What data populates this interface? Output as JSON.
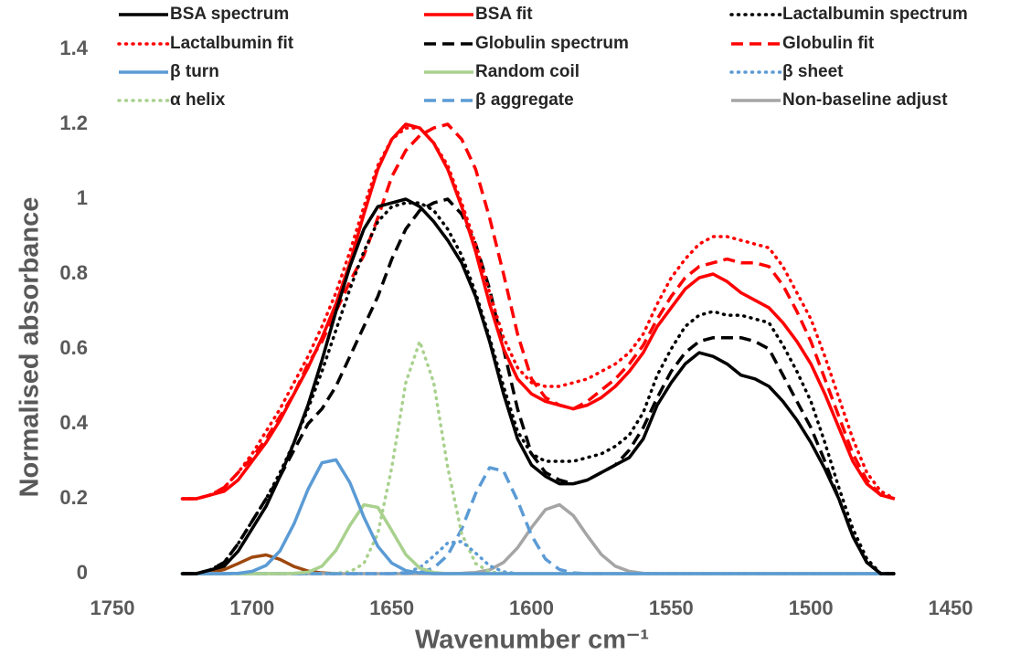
{
  "chart_data": {
    "type": "line",
    "x_label": "Wavenumber cm⁻¹",
    "y_label": "Normalised absorbance",
    "xlim": [
      1750,
      1450
    ],
    "xticks": [
      1750,
      1700,
      1650,
      1600,
      1550,
      1500,
      1450
    ],
    "ylim": [
      0,
      1.4
    ],
    "yticks": [
      0,
      0.2,
      0.4,
      0.6,
      0.8,
      1,
      1.2,
      1.4
    ],
    "grid": false,
    "x": [
      1725,
      1720,
      1715,
      1710,
      1705,
      1700,
      1695,
      1690,
      1685,
      1680,
      1675,
      1670,
      1665,
      1660,
      1655,
      1650,
      1645,
      1640,
      1635,
      1630,
      1625,
      1620,
      1615,
      1610,
      1605,
      1600,
      1595,
      1590,
      1585,
      1580,
      1575,
      1570,
      1565,
      1560,
      1555,
      1550,
      1545,
      1540,
      1535,
      1530,
      1525,
      1520,
      1515,
      1510,
      1505,
      1500,
      1495,
      1490,
      1485,
      1480,
      1475,
      1470
    ],
    "series": [
      {
        "name": "BSA spectrum",
        "color": "#000000",
        "style": "solid",
        "values": [
          0,
          0,
          0.01,
          0.02,
          0.06,
          0.12,
          0.18,
          0.26,
          0.35,
          0.45,
          0.57,
          0.7,
          0.82,
          0.92,
          0.98,
          0.99,
          1.0,
          0.98,
          0.94,
          0.89,
          0.83,
          0.74,
          0.62,
          0.48,
          0.36,
          0.29,
          0.26,
          0.24,
          0.24,
          0.25,
          0.27,
          0.29,
          0.31,
          0.36,
          0.45,
          0.51,
          0.56,
          0.59,
          0.58,
          0.56,
          0.53,
          0.52,
          0.5,
          0.46,
          0.41,
          0.35,
          0.28,
          0.2,
          0.1,
          0.03,
          0,
          0
        ]
      },
      {
        "name": "BSA fit",
        "color": "#ff0000",
        "style": "solid",
        "values": [
          0.2,
          0.2,
          0.21,
          0.22,
          0.25,
          0.3,
          0.35,
          0.41,
          0.48,
          0.55,
          0.63,
          0.72,
          0.83,
          0.96,
          1.08,
          1.16,
          1.2,
          1.19,
          1.15,
          1.08,
          0.98,
          0.86,
          0.72,
          0.6,
          0.52,
          0.48,
          0.46,
          0.45,
          0.44,
          0.45,
          0.47,
          0.5,
          0.54,
          0.59,
          0.66,
          0.71,
          0.76,
          0.79,
          0.8,
          0.78,
          0.75,
          0.73,
          0.71,
          0.67,
          0.62,
          0.56,
          0.48,
          0.39,
          0.3,
          0.24,
          0.21,
          0.2
        ]
      },
      {
        "name": "Lactalbumin spectrum",
        "color": "#000000",
        "style": "dotted",
        "values": [
          0,
          0,
          0.01,
          0.03,
          0.08,
          0.14,
          0.2,
          0.27,
          0.35,
          0.44,
          0.54,
          0.65,
          0.76,
          0.86,
          0.94,
          0.98,
          0.99,
          0.99,
          0.97,
          0.92,
          0.85,
          0.75,
          0.63,
          0.5,
          0.38,
          0.32,
          0.3,
          0.3,
          0.3,
          0.31,
          0.32,
          0.34,
          0.37,
          0.43,
          0.53,
          0.6,
          0.66,
          0.69,
          0.7,
          0.69,
          0.69,
          0.68,
          0.67,
          0.61,
          0.54,
          0.46,
          0.35,
          0.23,
          0.12,
          0.04,
          0,
          0
        ]
      },
      {
        "name": "Lactalbumin fit",
        "color": "#ff0000",
        "style": "dotted",
        "values": [
          0.2,
          0.2,
          0.21,
          0.23,
          0.27,
          0.32,
          0.38,
          0.44,
          0.51,
          0.58,
          0.66,
          0.75,
          0.86,
          0.98,
          1.09,
          1.16,
          1.19,
          1.19,
          1.15,
          1.09,
          0.99,
          0.88,
          0.75,
          0.63,
          0.55,
          0.51,
          0.5,
          0.5,
          0.51,
          0.52,
          0.54,
          0.56,
          0.59,
          0.64,
          0.72,
          0.79,
          0.84,
          0.88,
          0.9,
          0.9,
          0.89,
          0.88,
          0.87,
          0.82,
          0.75,
          0.68,
          0.58,
          0.47,
          0.36,
          0.27,
          0.22,
          0.2
        ]
      },
      {
        "name": "Globulin spectrum",
        "color": "#000000",
        "style": "dashed",
        "values": [
          0,
          0,
          0.01,
          0.03,
          0.08,
          0.14,
          0.2,
          0.26,
          0.33,
          0.4,
          0.44,
          0.5,
          0.58,
          0.66,
          0.74,
          0.84,
          0.92,
          0.97,
          0.99,
          1.0,
          0.96,
          0.88,
          0.76,
          0.6,
          0.44,
          0.32,
          0.27,
          0.25,
          0.24,
          0.25,
          0.27,
          0.29,
          0.33,
          0.39,
          0.47,
          0.54,
          0.59,
          0.62,
          0.63,
          0.63,
          0.63,
          0.62,
          0.6,
          0.53,
          0.46,
          0.39,
          0.3,
          0.2,
          0.1,
          0.03,
          0,
          0
        ]
      },
      {
        "name": "Globulin fit",
        "color": "#ff0000",
        "style": "dashed",
        "values": [
          0.2,
          0.2,
          0.21,
          0.23,
          0.27,
          0.31,
          0.36,
          0.42,
          0.48,
          0.56,
          0.62,
          0.7,
          0.78,
          0.85,
          0.95,
          1.06,
          1.13,
          1.17,
          1.19,
          1.2,
          1.16,
          1.08,
          0.95,
          0.8,
          0.64,
          0.52,
          0.47,
          0.45,
          0.44,
          0.46,
          0.49,
          0.52,
          0.56,
          0.61,
          0.68,
          0.74,
          0.79,
          0.82,
          0.83,
          0.84,
          0.83,
          0.83,
          0.82,
          0.77,
          0.7,
          0.62,
          0.52,
          0.42,
          0.32,
          0.25,
          0.21,
          0.2
        ]
      },
      {
        "name": "β turn",
        "color": "#5b9bd5",
        "style": "solid",
        "values": [
          0,
          0,
          0,
          0,
          0.001,
          0.006,
          0.022,
          0.061,
          0.133,
          0.225,
          0.296,
          0.304,
          0.243,
          0.151,
          0.073,
          0.028,
          0.008,
          0.002,
          0,
          0,
          0,
          0,
          0,
          0,
          0,
          0,
          0,
          0,
          0,
          0,
          0,
          0,
          0,
          0,
          0,
          0,
          0,
          0,
          0,
          0,
          0,
          0,
          0,
          0,
          0,
          0,
          0,
          0,
          0,
          0,
          0,
          0
        ]
      },
      {
        "name": "Random coil",
        "color": "#a9d18e",
        "style": "solid",
        "values": [
          0,
          0,
          0,
          0,
          0,
          0,
          0,
          0,
          0.001,
          0.004,
          0.02,
          0.062,
          0.129,
          0.184,
          0.177,
          0.115,
          0.051,
          0.015,
          0.003,
          0,
          0,
          0,
          0,
          0,
          0,
          0,
          0,
          0,
          0,
          0,
          0,
          0,
          0,
          0,
          0,
          0,
          0,
          0,
          0,
          0,
          0,
          0,
          0,
          0,
          0,
          0,
          0,
          0,
          0,
          0,
          0,
          0
        ]
      },
      {
        "name": "β sheet",
        "color": "#5b9bd5",
        "style": "dotted",
        "values": [
          0,
          0,
          0,
          0,
          0,
          0,
          0,
          0,
          0,
          0,
          0,
          0,
          0,
          0,
          0,
          0,
          0.003,
          0.016,
          0.047,
          0.082,
          0.086,
          0.055,
          0.021,
          0.005,
          0,
          0,
          0,
          0,
          0,
          0,
          0,
          0,
          0,
          0,
          0,
          0,
          0,
          0,
          0,
          0,
          0,
          0,
          0,
          0,
          0,
          0,
          0,
          0,
          0,
          0,
          0,
          0
        ]
      },
      {
        "name": "α helix",
        "color": "#a9d18e",
        "style": "dotted",
        "values": [
          0,
          0,
          0,
          0,
          0,
          0,
          0,
          0,
          0,
          0,
          0,
          0.001,
          0.005,
          0.027,
          0.107,
          0.284,
          0.51,
          0.62,
          0.51,
          0.284,
          0.107,
          0.027,
          0.005,
          0.001,
          0,
          0,
          0,
          0,
          0,
          0,
          0,
          0,
          0,
          0,
          0,
          0,
          0,
          0,
          0,
          0,
          0,
          0,
          0,
          0,
          0,
          0,
          0,
          0,
          0,
          0,
          0,
          0
        ]
      },
      {
        "name": "β aggregate",
        "color": "#5b9bd5",
        "style": "dashed",
        "values": [
          0,
          0,
          0,
          0,
          0,
          0,
          0,
          0,
          0,
          0,
          0,
          0,
          0,
          0,
          0,
          0,
          0.001,
          0.003,
          0.015,
          0.049,
          0.119,
          0.214,
          0.283,
          0.274,
          0.195,
          0.102,
          0.039,
          0.011,
          0.002,
          0,
          0,
          0,
          0,
          0,
          0,
          0,
          0,
          0,
          0,
          0,
          0,
          0,
          0,
          0,
          0,
          0,
          0,
          0,
          0,
          0,
          0,
          0
        ]
      },
      {
        "name": "Non-baseline adjust",
        "color": "#a5a5a5",
        "style": "solid",
        "values": [
          0,
          0,
          0,
          0,
          0,
          0,
          0,
          0,
          0,
          0,
          0,
          0,
          0,
          0,
          0,
          0,
          0,
          0,
          0,
          0,
          0.001,
          0.003,
          0.01,
          0.03,
          0.069,
          0.123,
          0.171,
          0.184,
          0.155,
          0.101,
          0.051,
          0.02,
          0.006,
          0.001,
          0,
          0,
          0,
          0,
          0,
          0,
          0,
          0,
          0,
          0,
          0,
          0,
          0,
          0,
          0,
          0,
          0,
          0
        ]
      },
      {
        "color": "#9e480e",
        "style": "solid",
        "values": [
          0,
          0.001,
          0.003,
          0.011,
          0.027,
          0.044,
          0.05,
          0.038,
          0.019,
          0.007,
          0.002,
          0,
          null,
          null,
          null,
          null,
          null,
          null,
          null,
          null,
          null,
          null,
          null,
          null,
          null,
          null,
          null,
          null,
          null,
          null,
          null,
          null,
          null,
          null,
          null,
          null,
          null,
          null,
          null,
          null,
          null,
          null,
          null,
          null,
          null,
          null,
          null,
          null,
          null,
          null,
          null,
          null
        ]
      }
    ]
  }
}
